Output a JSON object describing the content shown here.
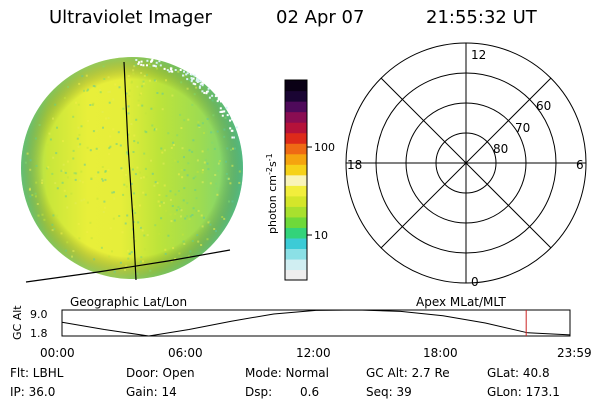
{
  "header": {
    "instrument": "Ultraviolet Imager",
    "date": "02 Apr 07",
    "time": "21:55:32 UT"
  },
  "earth_panel": {
    "label": "Geographic Lat/Lon"
  },
  "colorbar": {
    "unit_label": "photon cm",
    "unit_exp1": "-2",
    "unit_s": "s",
    "unit_exp2": "-1",
    "ticks": [
      {
        "value": 100,
        "label": "100"
      },
      {
        "value": 10,
        "label": "10"
      }
    ],
    "colors": [
      "#eeeeee",
      "#d0eef2",
      "#8be0e6",
      "#3ccbd6",
      "#33d37a",
      "#6ed93a",
      "#a8e02e",
      "#d4e62a",
      "#f2ee3c",
      "#f9f4b8",
      "#f6d21a",
      "#f5a40f",
      "#ef6a14",
      "#dd2a1a",
      "#b5123a",
      "#8a0d52",
      "#4e0a5a",
      "#1a0533",
      "#0a0015"
    ]
  },
  "polar_panel": {
    "label": "Apex MLat/MLT",
    "mlt_labels": {
      "top": "12",
      "bottom": "0",
      "left": "18",
      "right": "6"
    },
    "lat_labels": [
      "60",
      "70",
      "80"
    ]
  },
  "chart_data": {
    "type": "line",
    "title": "",
    "ylabel": "GC Alt",
    "yticks": [
      "9.0",
      "1.8"
    ],
    "ylim": [
      1.8,
      9.0
    ],
    "xticks": [
      "00:00",
      "06:00",
      "12:00",
      "18:00",
      "23:59"
    ],
    "xlim_hours": [
      0,
      24
    ],
    "series": [
      {
        "x": [
          0,
          2,
          4.1,
          6,
          8,
          10,
          12,
          14,
          16,
          18,
          20,
          22,
          24
        ],
        "y": [
          5.6,
          3.6,
          1.8,
          3.6,
          5.9,
          7.9,
          8.9,
          9.0,
          8.6,
          7.4,
          5.4,
          2.7,
          2.1
        ]
      }
    ],
    "current_time_hours": 21.93,
    "current_marker_color": "#cc2222"
  },
  "footer": {
    "col1": [
      "Flt: LBHL",
      "IP: 36.0"
    ],
    "col2": [
      "Door: Open",
      "Gain: 14"
    ],
    "col3a": [
      "Mode: Normal",
      "Dsp:"
    ],
    "col3b": [
      "",
      "0.6"
    ],
    "col4": [
      "GC Alt: 2.7 Re",
      "Seq: 39"
    ],
    "col5": [
      "GLat: 40.8",
      "GLon: 173.1"
    ]
  }
}
